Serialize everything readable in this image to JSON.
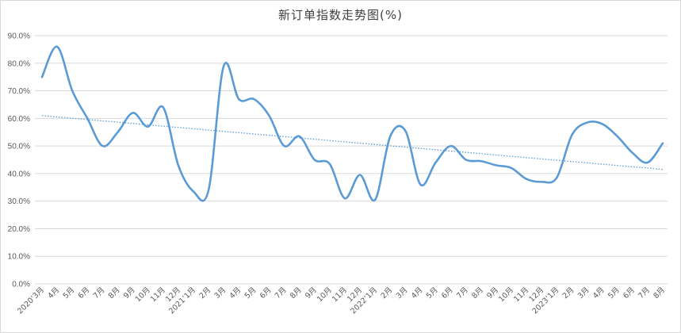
{
  "chart_data": {
    "type": "line",
    "title": "新订单指数走势图(%)",
    "xlabel": "",
    "ylabel": "",
    "ylim": [
      0,
      90
    ],
    "y_ticks": [
      "0.0%",
      "10.0%",
      "20.0%",
      "30.0%",
      "40.0%",
      "50.0%",
      "60.0%",
      "70.0%",
      "80.0%",
      "90.0%"
    ],
    "categories": [
      "2020’3月",
      "4月",
      "5月",
      "6月",
      "7月",
      "8月",
      "9月",
      "10月",
      "11月",
      "12月",
      "2021’1月",
      "2月",
      "3月",
      "4月",
      "5月",
      "6月",
      "7月",
      "8月",
      "9月",
      "10月",
      "11月",
      "12月",
      "2022’1月",
      "2月",
      "3月",
      "4月",
      "5月",
      "6月",
      "7月",
      "8月",
      "9月",
      "10月",
      "11月",
      "12月",
      "2023’1月",
      "2月",
      "3月",
      "4月",
      "5月",
      "6月",
      "7月",
      "8月"
    ],
    "series": [
      {
        "values": [
          75.0,
          86.0,
          70.0,
          60.0,
          50.0,
          55.0,
          62.0,
          57.0,
          64.0,
          43.0,
          33.5,
          34.0,
          79.0,
          67.0,
          67.0,
          61.0,
          50.0,
          53.5,
          45.0,
          43.5,
          31.0,
          39.5,
          30.5,
          53.5,
          55.5,
          36.0,
          44.0,
          50.0,
          45.0,
          44.5,
          43.0,
          42.0,
          38.0,
          37.0,
          38.5,
          54.0,
          58.5,
          58.0,
          53.5,
          47.5,
          44.0,
          51.0
        ],
        "color": "#5b9bd5",
        "style": "smooth"
      },
      {
        "type": "trendline",
        "values_start": 61.0,
        "values_end": 41.5,
        "color": "#5b9bd5",
        "style": "dotted"
      }
    ],
    "grid": true,
    "legend": "none"
  }
}
